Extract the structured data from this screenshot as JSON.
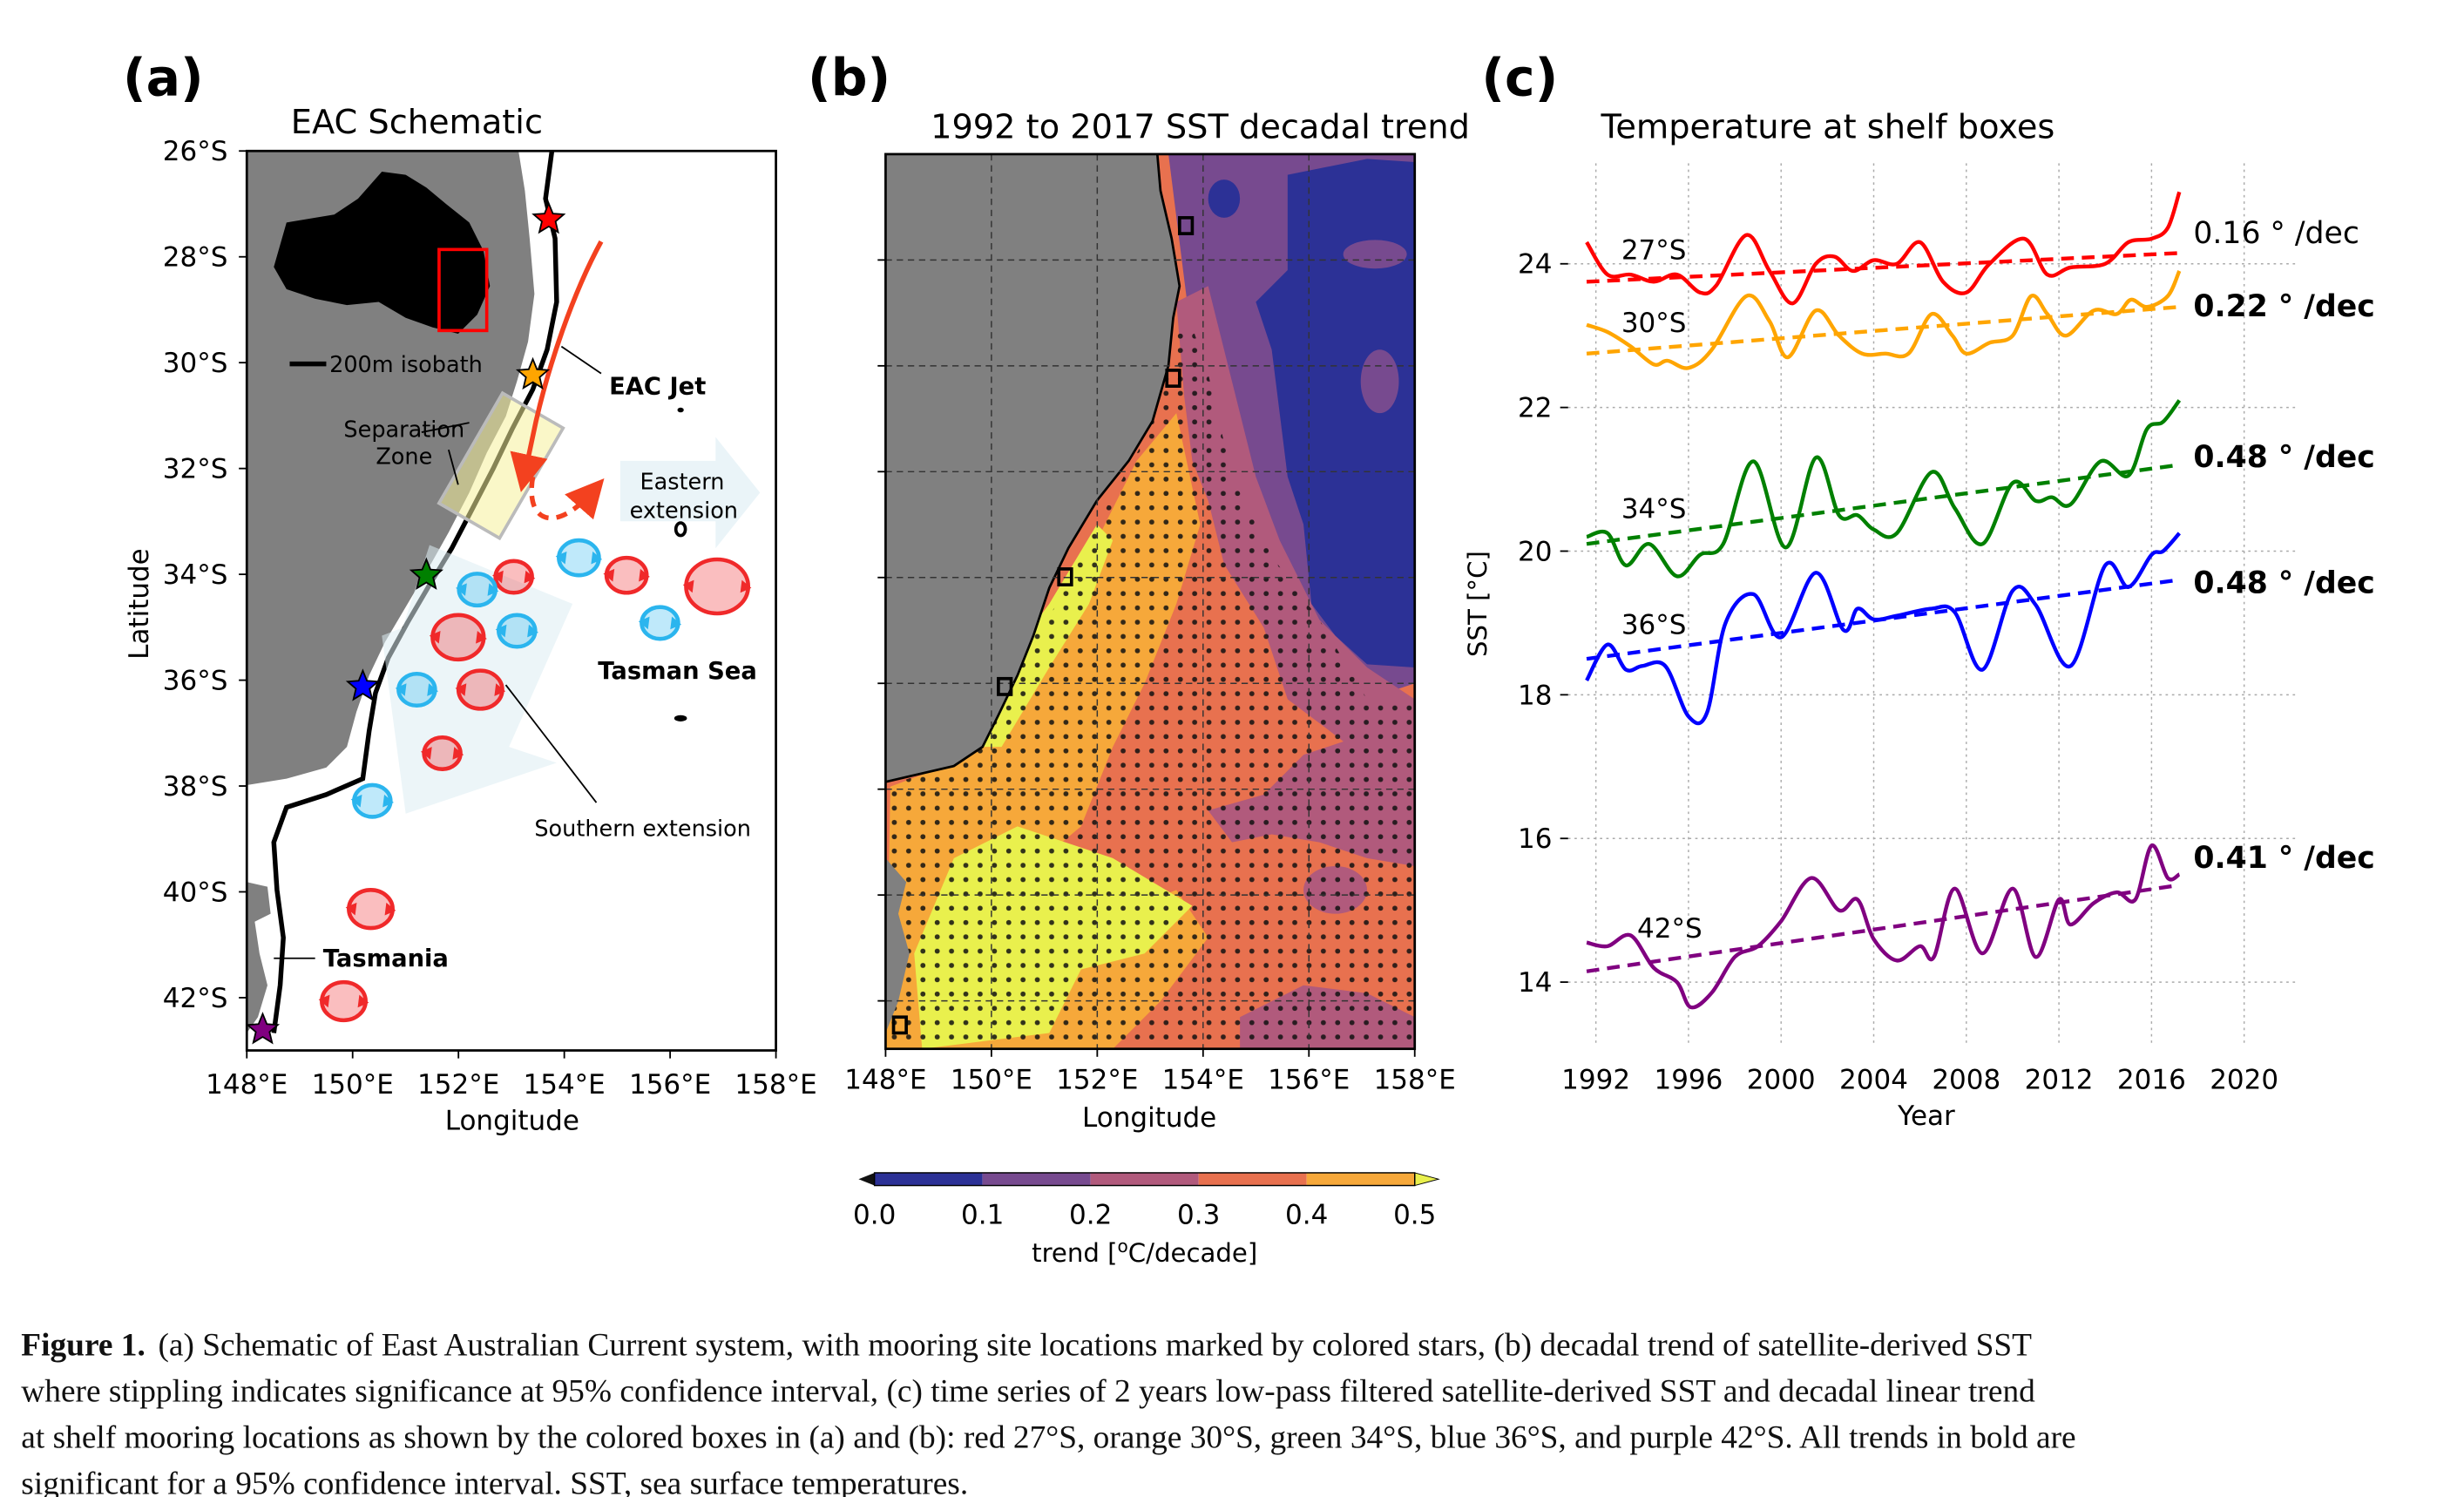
{
  "panels": {
    "a": {
      "label": "(a)",
      "title": "EAC Schematic",
      "xlabel": "Longitude",
      "ylabel": "Latitude",
      "lat_ticks": [
        "26°S",
        "28°S",
        "30°S",
        "32°S",
        "34°S",
        "36°S",
        "38°S",
        "40°S",
        "42°S"
      ],
      "lon_ticks": [
        "148°E",
        "150°E",
        "152°E",
        "154°E",
        "156°E",
        "158°E"
      ],
      "annotations": {
        "isobath": "200m isobath",
        "eac_jet": "EAC Jet",
        "separation_1": "Separation",
        "separation_2": "Zone",
        "eastern_1": "Eastern",
        "eastern_2": "extension",
        "tasman_sea": "Tasman Sea",
        "southern": "Southern extension",
        "tasmania": "Tasmania"
      },
      "mooring_star_colors": [
        "#ff0000",
        "#ffa500",
        "#008000",
        "#0000ff",
        "#800080"
      ],
      "eddy_colors": {
        "warm": "#f0292a",
        "cold": "#2bb5ee"
      }
    },
    "b": {
      "label": "(b)",
      "title": "1992 to 2017 SST decadal trend",
      "xlabel": "Longitude",
      "lon_ticks": [
        "148°E",
        "150°E",
        "152°E",
        "154°E",
        "156°E",
        "158°E"
      ],
      "colorbar": {
        "label_prefix": "trend [",
        "label_sup": "o",
        "label_suffix": "C/decade]",
        "ticks": [
          "0.0",
          "0.1",
          "0.2",
          "0.3",
          "0.4",
          "0.5"
        ],
        "colors": [
          "#2c3196",
          "#774a8f",
          "#b15a7c",
          "#e8714f",
          "#f6a83a",
          "#e9f04d"
        ]
      }
    },
    "c": {
      "label": "(c)"
    }
  },
  "chart_data": {
    "type": "line",
    "title": "Temperature at shelf boxes",
    "xlabel": "Year",
    "ylabel": "SST [°C]",
    "xlim": [
      1990.8,
      2022.3
    ],
    "ylim": [
      13.1,
      25.4
    ],
    "x_ticks": [
      "1992",
      "1996",
      "2000",
      "2004",
      "2008",
      "2012",
      "2016",
      "2020"
    ],
    "y_ticks": [
      "14",
      "16",
      "18",
      "20",
      "22",
      "24"
    ],
    "grid": true,
    "series": [
      {
        "name": "27°S",
        "color": "#ff0000",
        "trend_label": "0.16 ° /dec",
        "trend_bold": false,
        "trend": [
          [
            1991.6,
            23.75
          ],
          [
            2017.2,
            24.15
          ]
        ],
        "points": [
          [
            1991.6,
            24.3
          ],
          [
            1992.5,
            23.85
          ],
          [
            1993.5,
            23.85
          ],
          [
            1994.5,
            23.75
          ],
          [
            1995.5,
            23.85
          ],
          [
            1996.5,
            23.6
          ],
          [
            1997.2,
            23.7
          ],
          [
            1998.5,
            24.4
          ],
          [
            1999.5,
            23.9
          ],
          [
            2000.5,
            23.45
          ],
          [
            2001.5,
            24.0
          ],
          [
            2002.3,
            24.1
          ],
          [
            2003.1,
            23.9
          ],
          [
            2004,
            24.05
          ],
          [
            2005,
            24.0
          ],
          [
            2006,
            24.3
          ],
          [
            2007,
            23.75
          ],
          [
            2008,
            23.6
          ],
          [
            2009,
            24.0
          ],
          [
            2010.5,
            24.35
          ],
          [
            2011.5,
            23.85
          ],
          [
            2012.5,
            23.95
          ],
          [
            2014,
            24.0
          ],
          [
            2015,
            24.3
          ],
          [
            2016,
            24.35
          ],
          [
            2016.7,
            24.5
          ],
          [
            2017.2,
            25.0
          ]
        ]
      },
      {
        "name": "30°S",
        "color": "#ffa500",
        "trend_label": "0.22 ° /dec",
        "trend_bold": true,
        "trend": [
          [
            1991.6,
            22.75
          ],
          [
            2017.2,
            23.4
          ]
        ],
        "points": [
          [
            1991.6,
            23.15
          ],
          [
            1992.5,
            23.05
          ],
          [
            1993.5,
            22.85
          ],
          [
            1994.5,
            22.6
          ],
          [
            1995.1,
            22.65
          ],
          [
            1996,
            22.55
          ],
          [
            1997,
            22.8
          ],
          [
            1998.5,
            23.55
          ],
          [
            1999.5,
            23.2
          ],
          [
            2000.3,
            22.7
          ],
          [
            2001.5,
            23.35
          ],
          [
            2002.5,
            23.0
          ],
          [
            2003.5,
            22.75
          ],
          [
            2004.5,
            22.75
          ],
          [
            2005.5,
            22.75
          ],
          [
            2006.5,
            23.3
          ],
          [
            2007.4,
            23.0
          ],
          [
            2008,
            22.75
          ],
          [
            2009,
            22.9
          ],
          [
            2010,
            23.0
          ],
          [
            2010.8,
            23.55
          ],
          [
            2011.5,
            23.3
          ],
          [
            2012.3,
            23.0
          ],
          [
            2013.5,
            23.35
          ],
          [
            2014.5,
            23.3
          ],
          [
            2015.1,
            23.5
          ],
          [
            2015.8,
            23.4
          ],
          [
            2016.7,
            23.55
          ],
          [
            2017.2,
            23.9
          ]
        ]
      },
      {
        "name": "34°S",
        "color": "#008000",
        "trend_label": "0.48 ° /dec",
        "trend_bold": true,
        "trend": [
          [
            1991.6,
            20.1
          ],
          [
            2017.2,
            21.2
          ]
        ],
        "points": [
          [
            1991.6,
            20.2
          ],
          [
            1992.5,
            20.25
          ],
          [
            1993.3,
            19.8
          ],
          [
            1994.3,
            20.1
          ],
          [
            1995.5,
            19.65
          ],
          [
            1996.5,
            19.95
          ],
          [
            1997.5,
            20.1
          ],
          [
            1998.8,
            21.25
          ],
          [
            2000.2,
            20.05
          ],
          [
            2001.5,
            21.3
          ],
          [
            2002.5,
            20.5
          ],
          [
            2003.3,
            20.5
          ],
          [
            2004,
            20.3
          ],
          [
            2005,
            20.25
          ],
          [
            2006.5,
            21.1
          ],
          [
            2007.5,
            20.6
          ],
          [
            2008.7,
            20.1
          ],
          [
            2010,
            20.95
          ],
          [
            2011,
            20.7
          ],
          [
            2011.7,
            20.75
          ],
          [
            2012.5,
            20.65
          ],
          [
            2013.8,
            21.25
          ],
          [
            2015,
            21.05
          ],
          [
            2015.8,
            21.7
          ],
          [
            2016.5,
            21.8
          ],
          [
            2017.2,
            22.1
          ]
        ]
      },
      {
        "name": "36°S",
        "color": "#0000ff",
        "trend_label": "0.48 ° /dec",
        "trend_bold": true,
        "trend": [
          [
            1991.6,
            18.5
          ],
          [
            2017.2,
            19.6
          ]
        ],
        "points": [
          [
            1991.6,
            18.2
          ],
          [
            1992.5,
            18.7
          ],
          [
            1993.3,
            18.35
          ],
          [
            1994,
            18.4
          ],
          [
            1995,
            18.4
          ],
          [
            1996,
            17.7
          ],
          [
            1996.8,
            17.75
          ],
          [
            1997.6,
            19.0
          ],
          [
            1998.8,
            19.4
          ],
          [
            2000,
            18.8
          ],
          [
            2001.5,
            19.7
          ],
          [
            2002.7,
            18.9
          ],
          [
            2003.3,
            19.2
          ],
          [
            2004,
            19.05
          ],
          [
            2005,
            19.1
          ],
          [
            2006.5,
            19.2
          ],
          [
            2007.5,
            19.15
          ],
          [
            2008.7,
            18.35
          ],
          [
            2010,
            19.45
          ],
          [
            2011,
            19.25
          ],
          [
            2012.5,
            18.4
          ],
          [
            2014,
            19.8
          ],
          [
            2015,
            19.5
          ],
          [
            2016,
            19.95
          ],
          [
            2016.5,
            20.0
          ],
          [
            2017.2,
            20.25
          ]
        ]
      },
      {
        "name": "42°S",
        "color": "#800080",
        "trend_label": "0.41 ° /dec",
        "trend_bold": true,
        "trend": [
          [
            1991.6,
            14.15
          ],
          [
            2017.2,
            15.35
          ]
        ],
        "points": [
          [
            1991.6,
            14.55
          ],
          [
            1992.5,
            14.5
          ],
          [
            1993.5,
            14.65
          ],
          [
            1994.5,
            14.2
          ],
          [
            1995.5,
            14.0
          ],
          [
            1996.1,
            13.65
          ],
          [
            1997,
            13.85
          ],
          [
            1998,
            14.35
          ],
          [
            1999,
            14.5
          ],
          [
            2000,
            14.85
          ],
          [
            2001.3,
            15.45
          ],
          [
            2002.5,
            15.0
          ],
          [
            2003.3,
            15.15
          ],
          [
            2004,
            14.6
          ],
          [
            2005,
            14.3
          ],
          [
            2006,
            14.5
          ],
          [
            2006.6,
            14.35
          ],
          [
            2007.5,
            15.3
          ],
          [
            2008.7,
            14.4
          ],
          [
            2010,
            15.3
          ],
          [
            2011,
            14.35
          ],
          [
            2012,
            15.15
          ],
          [
            2012.5,
            14.8
          ],
          [
            2013.5,
            15.1
          ],
          [
            2014.5,
            15.25
          ],
          [
            2015.3,
            15.15
          ],
          [
            2016,
            15.9
          ],
          [
            2016.7,
            15.45
          ],
          [
            2017.2,
            15.5
          ]
        ]
      }
    ]
  },
  "caption": {
    "label": "Figure 1.",
    "lines": [
      "(a) Schematic of East Australian Current system, with mooring site locations marked by colored stars, (b) decadal trend of satellite-derived SST",
      "where stippling indicates significance at 95% confidence interval, (c) time series of 2 years low-pass filtered satellite-derived SST and decadal linear trend",
      "at shelf mooring locations as shown by the colored boxes in (a) and (b): red 27°S, orange 30°S, green 34°S, blue 36°S, and purple 42°S. All trends in bold are",
      "significant for a 95% confidence interval. SST, sea surface temperatures."
    ]
  }
}
